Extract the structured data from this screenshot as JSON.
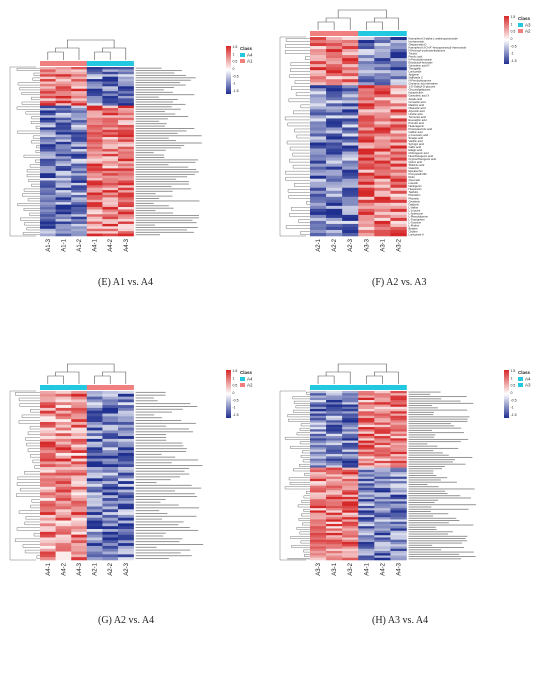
{
  "colors": {
    "high": "#d62728",
    "mid": "#ffffff",
    "low": "#1f2f8f",
    "dendrogram": "#555555",
    "class_A1": "#f08080",
    "class_A2": "#f08080",
    "class_A3": "#22c8e0",
    "class_A4": "#22c8e0"
  },
  "colorbar_ticks": [
    "1.5",
    "1",
    "0.5",
    "0",
    "-0.5",
    "-1",
    "-1.5"
  ],
  "captions": {
    "E": "(E) A1 vs. A4",
    "F": "(F) A2 vs. A3",
    "G": "(G) A2 vs. A4",
    "H": "(H) A3 vs. A4"
  },
  "chart_data": [
    {
      "type": "heatmap",
      "id": "E",
      "class_title": "Class",
      "legend": [
        "A4",
        "A1"
      ],
      "columns": [
        "A1-3",
        "A1-1",
        "A1-2",
        "A4-1",
        "A4-2",
        "A4-3"
      ],
      "column_groups": [
        "A1",
        "A1",
        "A1",
        "A4",
        "A4",
        "A4"
      ],
      "row_count": 70,
      "value_range": [
        -1.5,
        1.5
      ],
      "pattern": "top rows high in A1 and low in A4; remaining rows low in A1 and high in A4"
    },
    {
      "type": "heatmap",
      "id": "F",
      "class_title": "Class",
      "legend": [
        "A3",
        "A2"
      ],
      "columns": [
        "A2-1",
        "A2-2",
        "A2-3",
        "A3-3",
        "A3-1",
        "A3-2"
      ],
      "column_groups": [
        "A2",
        "A2",
        "A2",
        "A3",
        "A3",
        "A3"
      ],
      "value_range": [
        -1.5,
        1.5
      ],
      "rows": [
        "Kaempferol-3-alpha-L-arabinopyranoside",
        "Isorhamnetin",
        "Glepaneside D",
        "Kaempferol-3-O-(4\"-hexopyranosyl)-rhamnoside",
        "N-Hexosyl-p-phenylethylamine",
        "Tricetin",
        "Ferulic acid",
        "N-Feruloylserotonin",
        "Eriodictyol-hexoside",
        "Ganoderic acid H",
        "Theogallin",
        "Lonicoside",
        "Apigenin",
        "Saffloside C",
        "N-Feruloyltyramine",
        "Cinnamic acid derivative",
        "1-O-Galloyl-D-glucose",
        "Glucosylgalactose",
        "Isoquercitrin",
        "Ganoderic acid X",
        "Asiatic acid",
        "Corosolic acid",
        "Maslinic acid",
        "Oleanolic acid",
        "Arjunolic acid",
        "Ursolic acid",
        "Tormentic acid",
        "Euscaphic acid",
        "Pomolic acid",
        "Hederagenin",
        "Protocatechuic acid",
        "Caffeic acid",
        "p-Coumaric acid",
        "Sinapic acid",
        "Vanillic acid",
        "Syringic acid",
        "Gallic acid",
        "Ellagic acid",
        "Chlorogenic acid",
        "Neochlorogenic acid",
        "Cryptochlorogenic acid",
        "Quinic acid",
        "Shikimic acid",
        "Catechin",
        "Epicatechin",
        "Procyanidin B2",
        "Rutin",
        "Quercetin",
        "Luteolin",
        "Naringenin",
        "Hesperetin",
        "Taxifolin",
        "Phloridzin",
        "Phloretin",
        "Genistein",
        "Daidzein",
        "L-Valine",
        "L-Leucine",
        "L-Isoleucine",
        "L-Phenylalanine",
        "L-Tryptophan",
        "L-Tyrosine",
        "L-Proline",
        "Betaine",
        "Choline",
        "Lonicoside A"
      ],
      "pattern": "top 15 rows high in A2 and low in A3; remaining rows low in A2 and high in A3"
    },
    {
      "type": "heatmap",
      "id": "G",
      "class_title": "Class",
      "legend": [
        "A4",
        "A2"
      ],
      "columns": [
        "A4-1",
        "A4-2",
        "A4-3",
        "A2-1",
        "A2-2",
        "A2-3"
      ],
      "column_groups": [
        "A4",
        "A4",
        "A4",
        "A2",
        "A2",
        "A2"
      ],
      "row_count": 60,
      "value_range": [
        -1.5,
        1.5
      ],
      "pattern": "most rows high in A4 and low in A2; a small block at the top high in A2"
    },
    {
      "type": "heatmap",
      "id": "H",
      "class_title": "Class",
      "legend": [
        "A4",
        "A3"
      ],
      "columns": [
        "A3-3",
        "A3-1",
        "A3-2",
        "A4-1",
        "A4-2",
        "A4-3"
      ],
      "column_groups": [
        "A3",
        "A3",
        "A3",
        "A4",
        "A4",
        "A4"
      ],
      "row_count": 75,
      "value_range": [
        -1.5,
        1.5
      ],
      "pattern": "upper rows low in A3 and high in A4; lower rows high in A3 and low in A4"
    }
  ]
}
